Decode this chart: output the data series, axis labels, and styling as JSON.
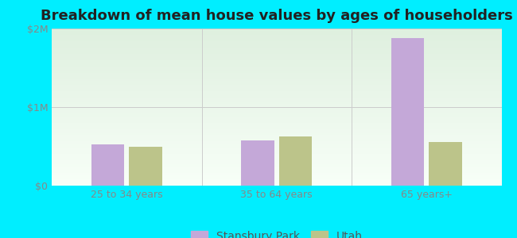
{
  "title": "Breakdown of mean house values by ages of householders",
  "categories": [
    "25 to 34 years",
    "35 to 64 years",
    "65 years+"
  ],
  "stansbury_park_values": [
    530000,
    580000,
    1880000
  ],
  "utah_values": [
    490000,
    630000,
    560000
  ],
  "bar_color_stansbury": "#c4a8d8",
  "bar_color_utah": "#bcc48a",
  "background_color": "#00eeff",
  "grad_top": "#dff0df",
  "grad_bottom": "#f8fff8",
  "ylim": [
    0,
    2000000
  ],
  "yticks": [
    0,
    1000000,
    2000000
  ],
  "ytick_labels": [
    "$0",
    "$1M",
    "$2M"
  ],
  "legend_labels": [
    "Stansbury Park",
    "Utah"
  ],
  "title_fontsize": 13,
  "tick_fontsize": 9,
  "legend_fontsize": 10,
  "bar_width": 0.22,
  "bar_gap": 0.03
}
